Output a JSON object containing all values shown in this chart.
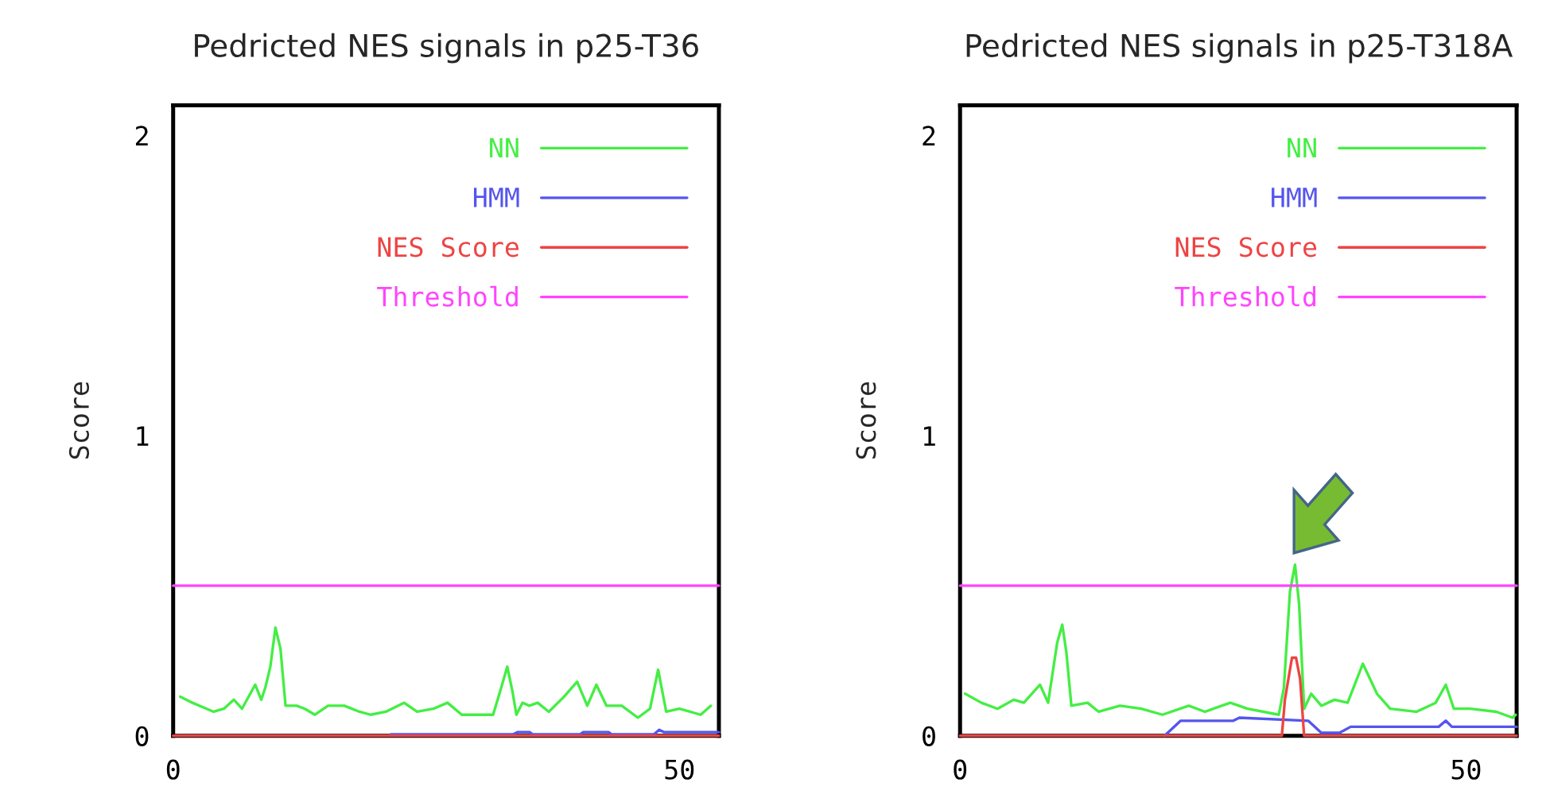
{
  "chart_data": [
    {
      "type": "line",
      "title": "Pedricted NES signals in p25-T36",
      "ylabel": "Score",
      "xlim": [
        0,
        53.9
      ],
      "xticks": [
        0,
        50
      ],
      "ylim": [
        0,
        2.1
      ],
      "yticks": [
        0,
        1,
        2
      ],
      "legend": "top right",
      "grid": false,
      "series": [
        {
          "name": "NN",
          "color": "#44ee44",
          "x": [
            0.7,
            1.9,
            2.6,
            4.0,
            5.0,
            6.0,
            6.8,
            8.1,
            8.7,
            9.1,
            9.6,
            10.1,
            10.6,
            11.1,
            12.2,
            13.0,
            14.0,
            15.3,
            16.9,
            18.4,
            19.5,
            21.0,
            22.8,
            24.1,
            25.7,
            27.1,
            28.5,
            31.6,
            32.4,
            33.0,
            33.5,
            33.9,
            34.5,
            35.2,
            36.0,
            37.1,
            38.6,
            39.9,
            40.9,
            41.8,
            42.8,
            44.3,
            45.9,
            47.1,
            47.9,
            48.7,
            50.0,
            52.1,
            53.1
          ],
          "values": [
            0.13,
            0.11,
            0.1,
            0.08,
            0.09,
            0.12,
            0.09,
            0.17,
            0.12,
            0.16,
            0.23,
            0.36,
            0.29,
            0.1,
            0.1,
            0.09,
            0.07,
            0.1,
            0.1,
            0.08,
            0.07,
            0.08,
            0.11,
            0.08,
            0.09,
            0.11,
            0.07,
            0.07,
            0.16,
            0.23,
            0.15,
            0.07,
            0.11,
            0.1,
            0.11,
            0.08,
            0.13,
            0.18,
            0.1,
            0.17,
            0.1,
            0.1,
            0.06,
            0.09,
            0.22,
            0.08,
            0.09,
            0.07,
            0.1
          ]
        },
        {
          "name": "HMM",
          "color": "#5555ee",
          "x": [
            21.5,
            33.6,
            34.0,
            35.2,
            35.5,
            40.2,
            40.5,
            43.0,
            43.3,
            47.5,
            48.0,
            48.5,
            53.9
          ],
          "values": [
            0.005,
            0.005,
            0.012,
            0.012,
            0.005,
            0.005,
            0.012,
            0.012,
            0.005,
            0.005,
            0.02,
            0.012,
            0.012
          ]
        },
        {
          "name": "NES Score",
          "color": "#ee4444",
          "x": [
            0,
            53.9
          ],
          "values": [
            0,
            0
          ]
        },
        {
          "name": "Threshold",
          "color": "#ff44ff",
          "x": [
            0,
            53.9
          ],
          "values": [
            0.5,
            0.5
          ]
        }
      ]
    },
    {
      "type": "line",
      "title": "Pedricted NES signals in p25-T318A",
      "ylabel": "Score",
      "xlim": [
        0,
        55
      ],
      "xticks": [
        0,
        50
      ],
      "ylim": [
        0,
        2.1
      ],
      "yticks": [
        0,
        1,
        2
      ],
      "legend": "top right",
      "grid": false,
      "series": [
        {
          "name": "NN",
          "color": "#44ee44",
          "x": [
            0.5,
            2.1,
            3.7,
            5.3,
            6.3,
            7.9,
            8.7,
            9.6,
            10.1,
            10.5,
            11.0,
            12.6,
            13.7,
            15.8,
            17.9,
            20.0,
            22.6,
            24.2,
            26.7,
            28.4,
            31.5,
            32.0,
            32.6,
            33.1,
            33.5,
            34.0,
            34.7,
            35.7,
            37.0,
            38.3,
            39.8,
            41.2,
            42.5,
            45.1,
            47.0,
            48.0,
            48.8,
            50.4,
            53.0,
            54.6,
            54.9
          ],
          "values": [
            0.14,
            0.11,
            0.09,
            0.12,
            0.11,
            0.17,
            0.11,
            0.31,
            0.37,
            0.28,
            0.1,
            0.11,
            0.08,
            0.1,
            0.09,
            0.07,
            0.1,
            0.08,
            0.11,
            0.09,
            0.07,
            0.16,
            0.48,
            0.57,
            0.44,
            0.09,
            0.14,
            0.1,
            0.12,
            0.11,
            0.24,
            0.14,
            0.09,
            0.08,
            0.11,
            0.17,
            0.09,
            0.09,
            0.08,
            0.06,
            0.07
          ]
        },
        {
          "name": "HMM",
          "color": "#5555ee",
          "x": [
            20.2,
            21.8,
            27.0,
            27.6,
            34.4,
            35.7,
            37.5,
            38.6,
            47.3,
            48.0,
            48.6,
            55.0
          ],
          "values": [
            0,
            0.05,
            0.05,
            0.06,
            0.05,
            0.01,
            0.01,
            0.03,
            0.03,
            0.05,
            0.03,
            0.03
          ]
        },
        {
          "name": "NES Score",
          "color": "#ee4444",
          "x": [
            0,
            31.8,
            32.1,
            32.8,
            33.2,
            33.6,
            34.0,
            55.0
          ],
          "values": [
            0,
            0,
            0.12,
            0.26,
            0.26,
            0.19,
            0,
            0
          ]
        },
        {
          "name": "Threshold",
          "color": "#ff44ff",
          "x": [
            0,
            55
          ],
          "values": [
            0.5,
            0.5
          ]
        }
      ]
    }
  ]
}
